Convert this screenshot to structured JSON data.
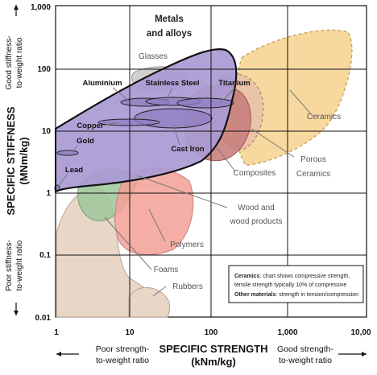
{
  "chart_data": {
    "type": "scatter",
    "x_axis": {
      "title": "SPECIFIC STRENGTH",
      "unit": "(kNm/kg)",
      "scale": "log",
      "ticks": [
        "1",
        "10",
        "100",
        "1,000",
        "10,00"
      ],
      "left_note": "Poor strength-to-weight ratio",
      "right_note": "Good strength-to-weight ratio"
    },
    "y_axis": {
      "title": "SPECIFIC STIFFNESS",
      "unit": "(MNm/kg)",
      "scale": "log",
      "ticks": [
        "1,000",
        "100",
        "10",
        "1",
        "0.1",
        "0.01"
      ],
      "top_note": "Good stiffness-to-weight ratio",
      "bottom_note": "Poor stiffness-to-weight ratio"
    },
    "grid": true,
    "regions": [
      {
        "name": "Metals and alloys",
        "color": "#a99ad4",
        "x_range": [
          1,
          200
        ],
        "y_range": [
          1,
          200
        ]
      },
      {
        "name": "Ceramics",
        "color": "#f7d9a0",
        "x_range": [
          100,
          3000
        ],
        "y_range": [
          5,
          400
        ]
      },
      {
        "name": "Porous Ceramics",
        "color": "#e8c0a8",
        "x_range": [
          100,
          600
        ],
        "y_range": [
          5,
          60
        ]
      },
      {
        "name": "Composites",
        "color": "#c97f7d",
        "x_range": [
          40,
          350
        ],
        "y_range": [
          2,
          40
        ]
      },
      {
        "name": "Glasses",
        "color": "#cccccc",
        "x_range": [
          20,
          80
        ],
        "y_range": [
          20,
          40
        ]
      },
      {
        "name": "Wood and wood products",
        "color": "#9cc79a",
        "x_range": [
          3,
          200
        ],
        "y_range": [
          0.5,
          15
        ]
      },
      {
        "name": "Polymers",
        "color": "#f2a097",
        "x_range": [
          8,
          80
        ],
        "y_range": [
          0.1,
          2
        ]
      },
      {
        "name": "Foams",
        "color": "#e8d6c6",
        "x_range": [
          1,
          12
        ],
        "y_range": [
          0.01,
          1
        ]
      },
      {
        "name": "Rubbers",
        "color": "#e8d6c6",
        "x_range": [
          10,
          40
        ],
        "y_range": [
          0.01,
          0.05
        ]
      }
    ],
    "materials": [
      {
        "name": "Aluminium",
        "x_range": [
          9,
          100
        ],
        "y_range": [
          24,
          30
        ]
      },
      {
        "name": "Stainless Steel",
        "x_range": [
          35,
          130
        ],
        "y_range": [
          24,
          30
        ]
      },
      {
        "name": "Titanium",
        "x_range": [
          60,
          250
        ],
        "y_range": [
          24,
          30
        ]
      },
      {
        "name": "Copper",
        "x_range": [
          5,
          30
        ],
        "y_range": [
          13,
          15
        ]
      },
      {
        "name": "Cast Iron",
        "x_range": [
          8,
          60
        ],
        "y_range": [
          10,
          20
        ]
      },
      {
        "name": "Gold",
        "x_range": [
          1,
          2
        ],
        "y_range": [
          4,
          4.5
        ]
      },
      {
        "name": "Lead",
        "x_range": [
          1,
          1.1
        ],
        "y_range": [
          1,
          1.2
        ]
      }
    ],
    "notes": {
      "ceramics_label": "Ceramics",
      "ceramics_text": ": chart shows compressive strength, tensile strength typically 10% of compressive",
      "other_label": "Other materials",
      "other_text": ": strength in tension/compression"
    }
  }
}
